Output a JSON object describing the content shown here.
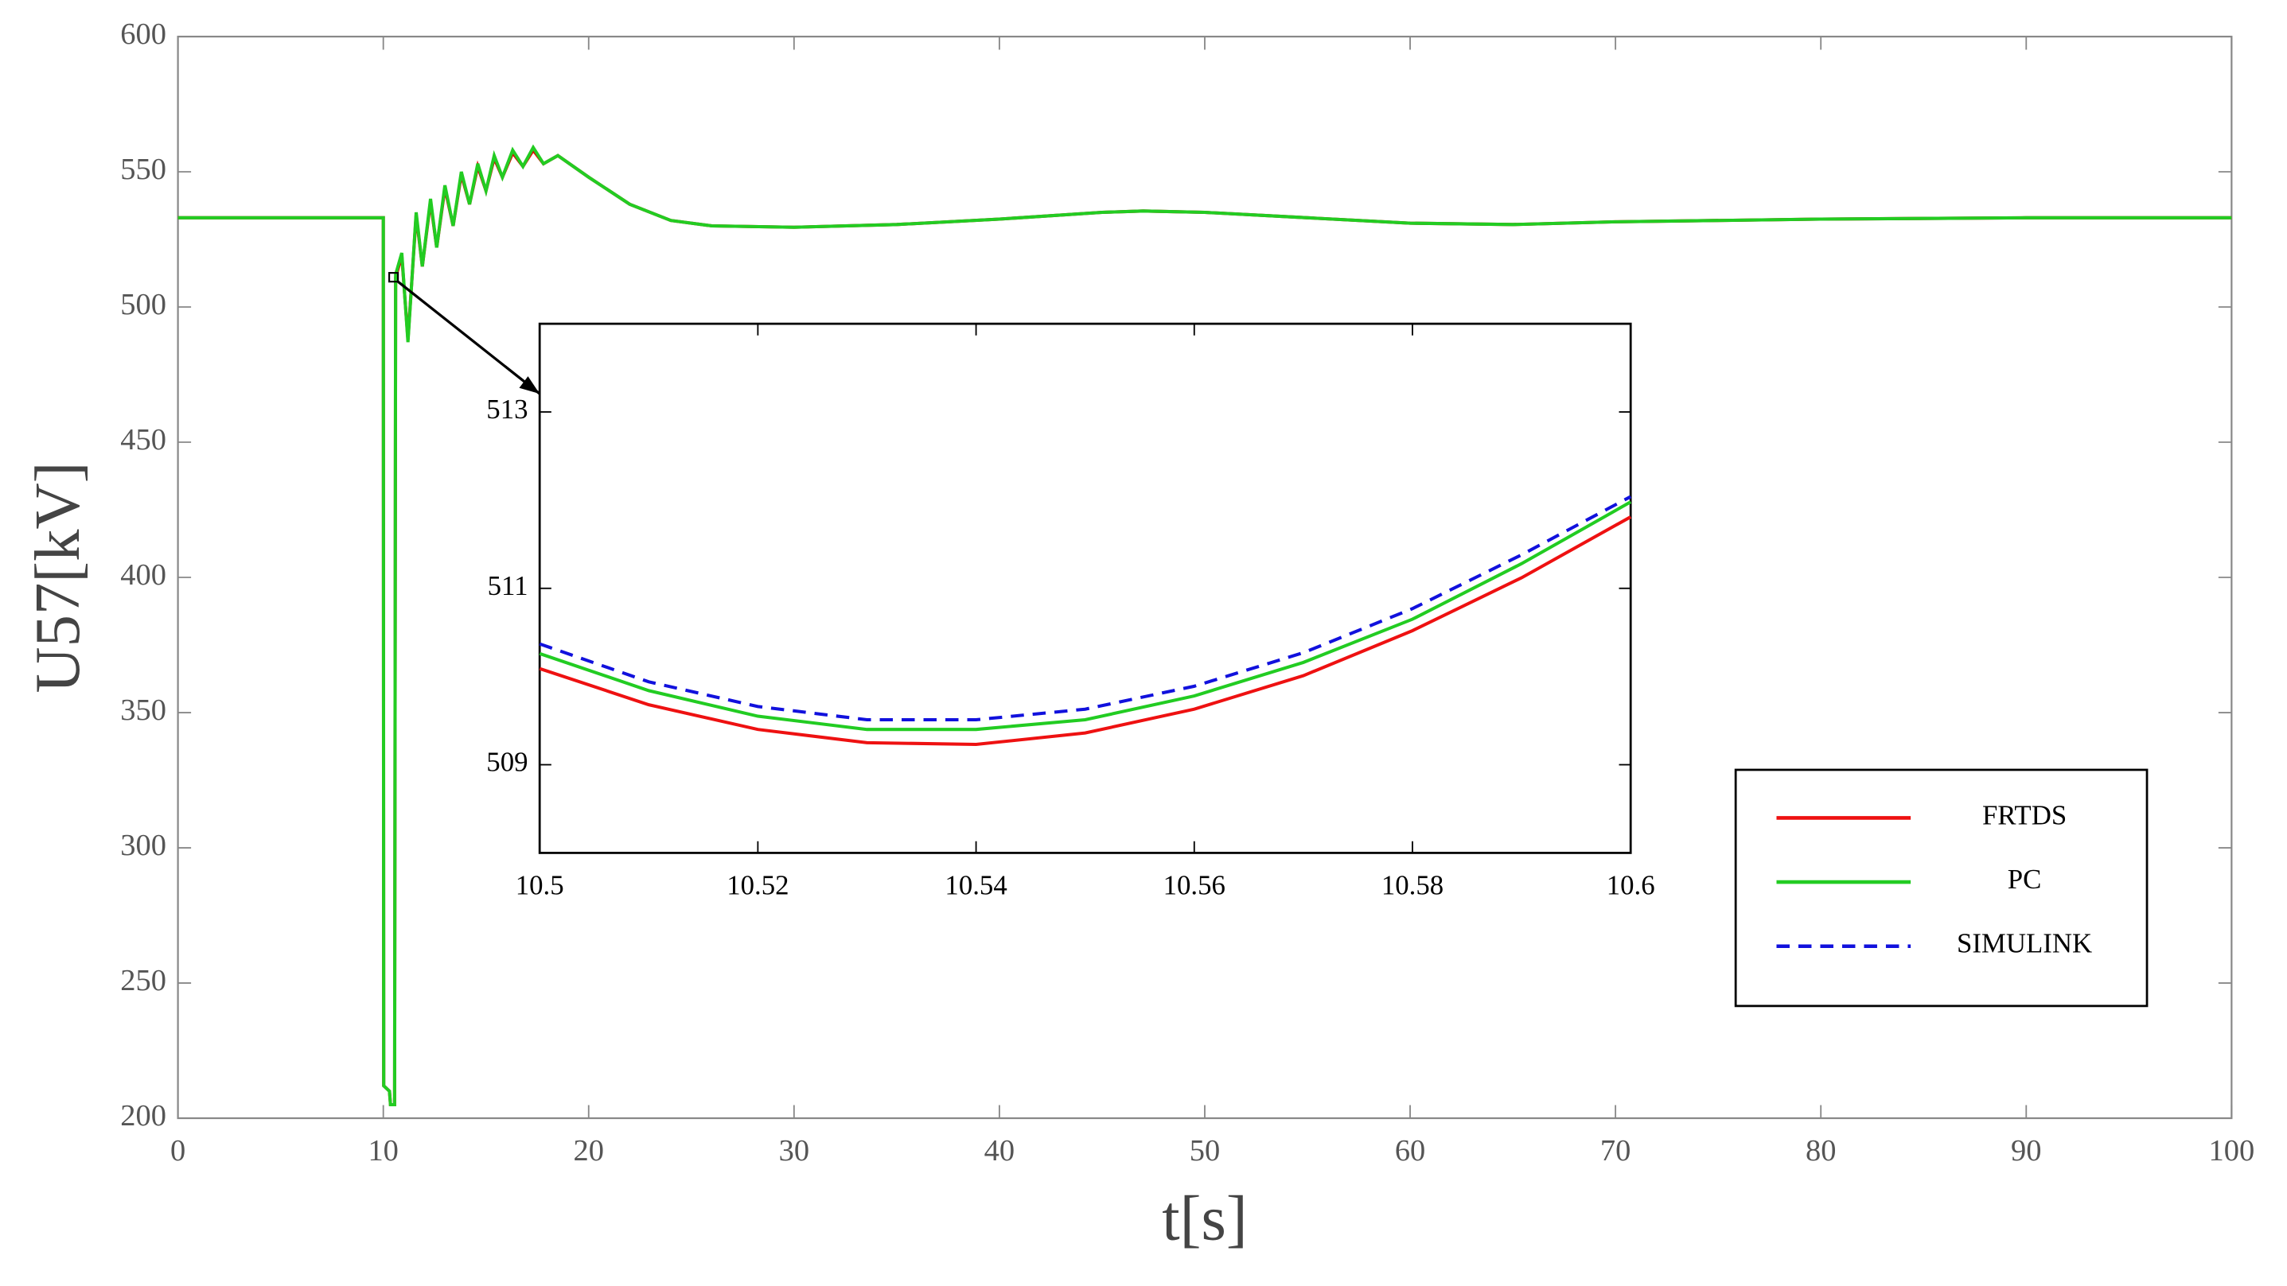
{
  "chart_data": [
    {
      "type": "line",
      "xlabel": "t[s]",
      "ylabel": "U57[kV]",
      "xlim": [
        0,
        100
      ],
      "ylim": [
        200,
        600
      ],
      "xticks": [
        0,
        10,
        20,
        30,
        40,
        50,
        60,
        70,
        80,
        90,
        100
      ],
      "yticks": [
        200,
        250,
        300,
        350,
        400,
        450,
        500,
        550,
        600
      ],
      "grid": false,
      "x": [
        0,
        10,
        10.02,
        10.3,
        10.35,
        10.55,
        10.6,
        10.9,
        11.2,
        11.6,
        11.9,
        12.3,
        12.6,
        13,
        13.4,
        13.8,
        14.2,
        14.6,
        15,
        15.4,
        15.8,
        16.3,
        16.8,
        17.3,
        17.8,
        18.5,
        20,
        22,
        24,
        26,
        30,
        35,
        40,
        45,
        47,
        50,
        55,
        60,
        65,
        70,
        80,
        90,
        100
      ],
      "series": [
        {
          "color": "#e00000",
          "values": [
            533,
            533,
            212,
            210,
            205,
            205,
            511,
            519,
            488,
            534,
            515,
            539,
            522,
            544,
            530,
            549,
            538,
            552,
            543,
            555,
            548,
            557,
            552,
            558,
            553,
            556,
            548,
            538,
            532,
            530,
            529.5,
            530.5,
            532.5,
            535,
            535.5,
            535,
            533,
            531,
            530.5,
            531.5,
            532.5,
            533,
            533
          ]
        },
        {
          "color": "#22cc22",
          "values": [
            533,
            533,
            212,
            210,
            205,
            205,
            512,
            520,
            487,
            535,
            515,
            540,
            522,
            545,
            530,
            550,
            538,
            553,
            543,
            556,
            548,
            558,
            552,
            559,
            553,
            556,
            548,
            538,
            532,
            530,
            529.5,
            530.5,
            532.5,
            535,
            535.5,
            535,
            533,
            531,
            530.5,
            531.5,
            532.5,
            533,
            533
          ]
        }
      ]
    },
    {
      "type": "line",
      "xlim": [
        10.5,
        10.6
      ],
      "ylim": [
        508,
        514
      ],
      "xticks": [
        10.5,
        10.52,
        10.54,
        10.56,
        10.58,
        10.6
      ],
      "yticks": [
        509,
        511,
        513
      ],
      "legend": "lower right",
      "x": [
        10.5,
        10.51,
        10.52,
        10.53,
        10.54,
        10.55,
        10.56,
        10.57,
        10.58,
        10.59,
        10.6
      ],
      "series": [
        {
          "name": "FRTDS",
          "color": "#ee1111",
          "values": [
            510.09,
            509.68,
            509.4,
            509.25,
            509.23,
            509.36,
            509.63,
            510.01,
            510.52,
            511.12,
            511.81
          ]
        },
        {
          "name": "PC",
          "color": "#22cc22",
          "values": [
            510.26,
            509.84,
            509.55,
            509.4,
            509.4,
            509.51,
            509.78,
            510.16,
            510.65,
            511.28,
            511.98
          ]
        },
        {
          "name": "SIMULINK",
          "color": "#1111dd",
          "dash": true,
          "values": [
            510.37,
            509.94,
            509.66,
            509.51,
            509.51,
            509.63,
            509.89,
            510.27,
            510.77,
            511.38,
            512.04
          ]
        }
      ]
    }
  ]
}
